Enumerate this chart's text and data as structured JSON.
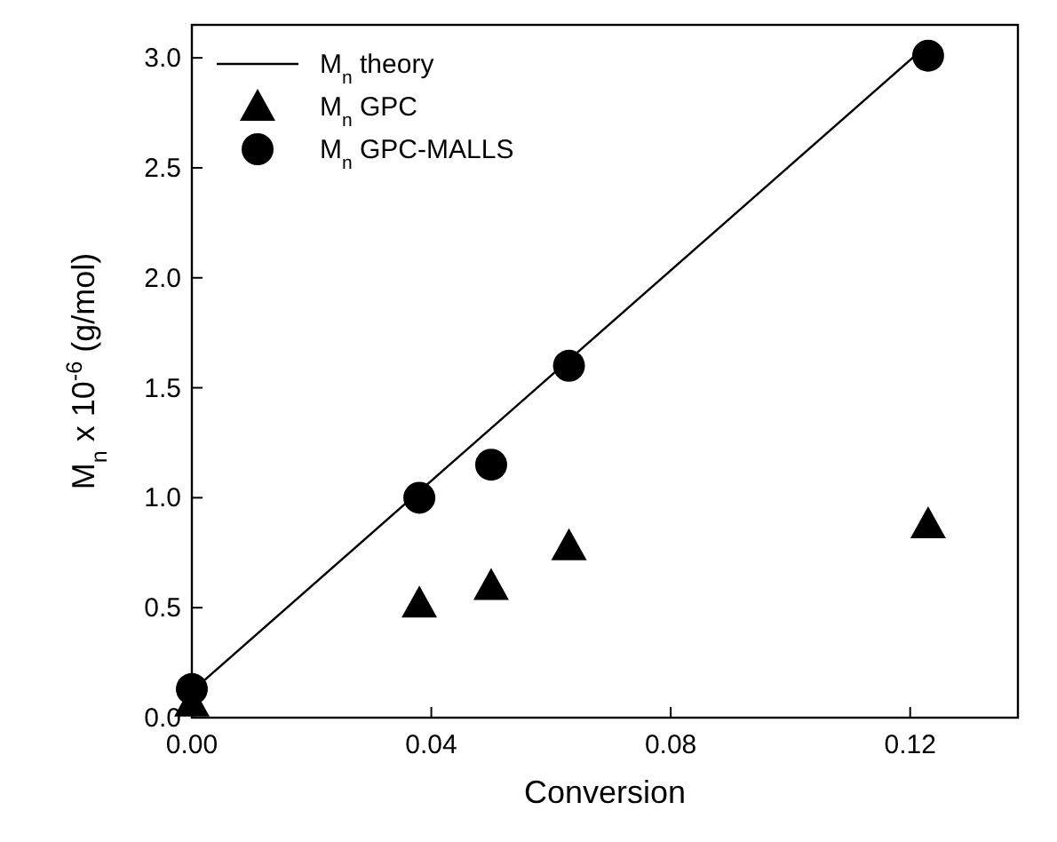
{
  "chart_data": {
    "type": "scatter",
    "xlabel": "Conversion",
    "ylabel": "M$_{n}$ x 10$^{-6}$ (g/mol)",
    "xlim": [
      0,
      0.138
    ],
    "ylim": [
      0,
      3.15
    ],
    "xticks": [
      {
        "value": 0,
        "label": "0.00"
      },
      {
        "value": 0.04,
        "label": "0.04"
      },
      {
        "value": 0.08,
        "label": "0.08"
      },
      {
        "value": 0.12,
        "label": "0.12"
      }
    ],
    "yticks": [
      {
        "value": 0,
        "label": "0.0"
      },
      {
        "value": 0.5,
        "label": "0.5"
      },
      {
        "value": 1,
        "label": "1.0"
      },
      {
        "value": 1.5,
        "label": "1.5"
      },
      {
        "value": 2,
        "label": "2.0"
      },
      {
        "value": 2.5,
        "label": "2.5"
      },
      {
        "value": 3,
        "label": "3.0"
      }
    ],
    "legend": "top left",
    "grid": false,
    "series": [
      {
        "name": "M$_{n}$ theory",
        "type": "line",
        "marker": "none",
        "line_style": "solid",
        "color": "#000000",
        "x": [
          0,
          0.1225
        ],
        "values": [
          0.12,
          3.05
        ]
      },
      {
        "name": "M$_{n}$ GPC",
        "marker": "triangle",
        "color": "#000000",
        "x": [
          0,
          0.038,
          0.05,
          0.063,
          0.123
        ],
        "values": [
          0.07,
          0.52,
          0.6,
          0.78,
          0.88
        ]
      },
      {
        "name": "M$_{n}$ GPC-MALLS",
        "marker": "circle",
        "color": "#000000",
        "x": [
          0,
          0.038,
          0.05,
          0.063,
          0.123
        ],
        "values": [
          0.13,
          1.0,
          1.15,
          1.6,
          3.01
        ]
      }
    ]
  }
}
